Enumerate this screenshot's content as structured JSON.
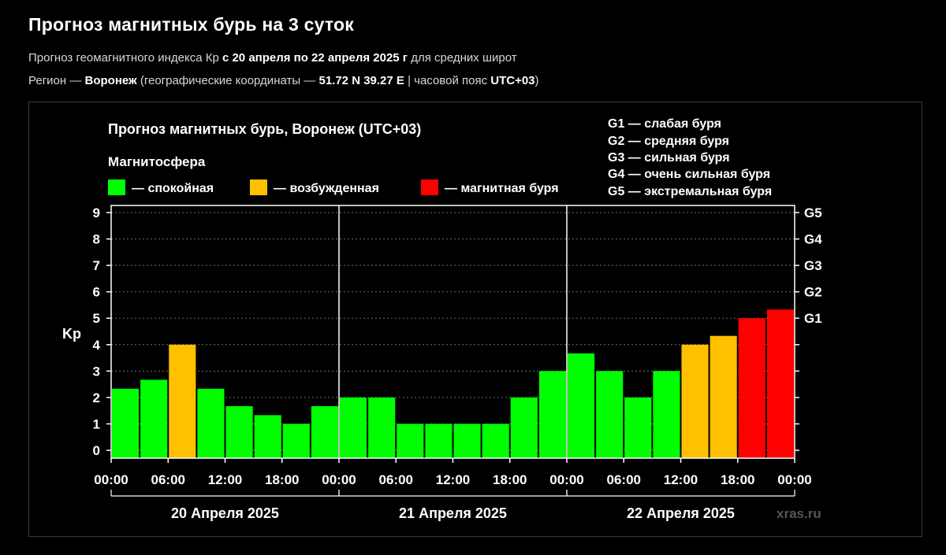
{
  "header": {
    "title": "Прогноз магнитных бурь на 3 суток",
    "line1_pre": "Прогноз геомагнитного индекса Кр ",
    "line1_bold": "с 20 апреля по 22 апреля 2025 г",
    "line1_post": " для средних широт",
    "line2_pre": "Регион — ",
    "line2_region": "Воронеж",
    "line2_mid": " (географические координаты — ",
    "line2_coords": "51.72 N 39.27 E",
    "line2_mid2": " | часовой пояс ",
    "line2_tz": "UTC+03",
    "line2_post": ")"
  },
  "chart_data": {
    "type": "bar",
    "title": "Прогноз магнитных бурь, Воронеж (UTC+03)",
    "legend_title": "Магнитосфера",
    "legend": [
      {
        "label": "— спокойная",
        "color": "#00ff00"
      },
      {
        "label": "— возбужденная",
        "color": "#ffc000"
      },
      {
        "label": "— магнитная буря",
        "color": "#ff0000"
      }
    ],
    "storm_levels": [
      {
        "level": "G1",
        "description": "слабая буря",
        "kp": 5
      },
      {
        "level": "G2",
        "description": "средняя буря",
        "kp": 6
      },
      {
        "level": "G3",
        "description": "сильная буря",
        "kp": 7
      },
      {
        "level": "G4",
        "description": "очень сильная буря",
        "kp": 8
      },
      {
        "level": "G5",
        "description": "экстремальная буря",
        "kp": 9
      }
    ],
    "ylabel": "Kp",
    "ylim": [
      0,
      9
    ],
    "y_ticks": [
      "0",
      "1",
      "2",
      "3",
      "4",
      "5",
      "6",
      "7",
      "8",
      "9"
    ],
    "x_tick_labels": [
      "00:00",
      "06:00",
      "12:00",
      "18:00",
      "00:00",
      "06:00",
      "12:00",
      "18:00",
      "00:00",
      "06:00",
      "12:00",
      "18:00",
      "00:00"
    ],
    "days": [
      "20 Апреля 2025",
      "21 Апреля 2025",
      "22 Апреля 2025"
    ],
    "values": [
      2.33,
      2.67,
      4,
      2.33,
      1.67,
      1.33,
      1,
      1.67,
      2,
      2,
      1,
      1,
      1,
      1,
      2,
      3,
      3.67,
      3,
      2,
      3,
      4,
      4.33,
      5,
      5.33
    ],
    "colors": [
      "#00ff00",
      "#00ff00",
      "#ffc000",
      "#00ff00",
      "#00ff00",
      "#00ff00",
      "#00ff00",
      "#00ff00",
      "#00ff00",
      "#00ff00",
      "#00ff00",
      "#00ff00",
      "#00ff00",
      "#00ff00",
      "#00ff00",
      "#00ff00",
      "#00ff00",
      "#00ff00",
      "#00ff00",
      "#00ff00",
      "#ffc000",
      "#ffc000",
      "#ff0000",
      "#ff0000"
    ],
    "watermark": "xras.ru"
  }
}
